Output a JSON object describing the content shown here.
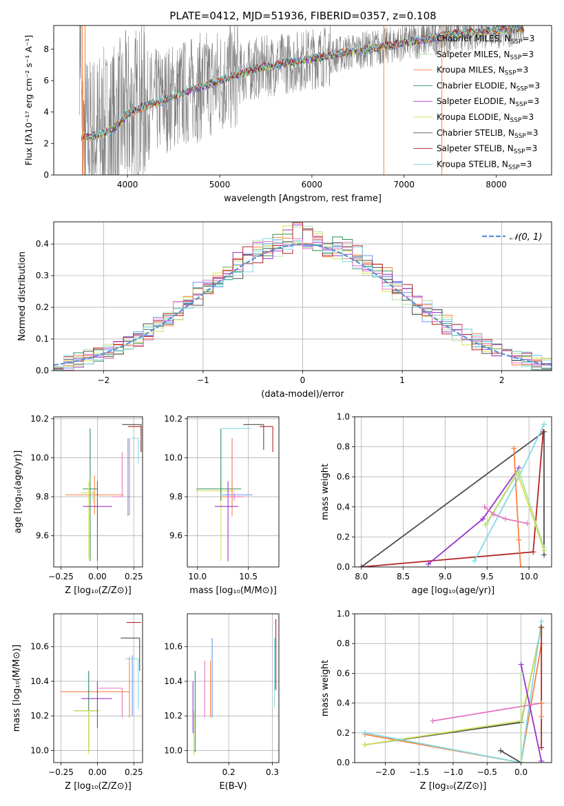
{
  "figure": {
    "title": "PLATE=0412, MJD=51936, FIBERID=0357, z=0.108"
  },
  "colors": {
    "chabrier_miles": "#6495ed",
    "salpeter_miles": "#b0e0a0",
    "kroupa_miles": "#ff7f3f",
    "chabrier_elodie": "#2e8b57",
    "salpeter_elodie": "#9932cc",
    "kroupa_elodie": "#d4e157",
    "chabrier_stelib": "#4d4d4d",
    "salpeter_stelib": "#b22222",
    "kroupa_stelib": "#7fdbe5",
    "pink": "#e377c2",
    "data": "#808080",
    "gaussian": "#5b8fd6"
  },
  "chart_data": [
    {
      "id": "spectrum",
      "type": "line",
      "title": "PLATE=0412, MJD=51936, FIBERID=0357, z=0.108",
      "xlabel": "wavelength [Angstrom, rest frame]",
      "ylabel": "Flux [f_λ 10^-17 erg cm^-2 s^-1 A^-1]",
      "xlim": [
        3200,
        8600
      ],
      "ylim": [
        0,
        9.5
      ],
      "xticks": [
        4000,
        5000,
        6000,
        7000,
        8000
      ],
      "yticks": [
        0,
        2,
        4,
        6,
        8
      ],
      "legend_position": "upper right",
      "legend": [
        "Chabrier MILES, N_SSP=3",
        "Salpeter MILES, N_SSP=3",
        "Kroupa MILES, N_SSP=3",
        "Chabrier ELODIE, N_SSP=3",
        "Salpeter ELODIE, N_SSP=3",
        "Kroupa ELODIE, N_SSP=3",
        "Chabrier STELIB, N_SSP=3",
        "Salpeter STELIB, N_SSP=3",
        "Kroupa STELIB, N_SSP=3"
      ],
      "model_continuum": {
        "x": [
          3500,
          3600,
          3700,
          3800,
          3900,
          4000,
          4200,
          4400,
          4600,
          4800,
          5000,
          5200,
          5400,
          5600,
          5800,
          6000,
          6200,
          6400,
          6600,
          6800,
          7000,
          7200,
          7400,
          7600,
          7800,
          8000,
          8200,
          8300
        ],
        "y": [
          2.5,
          2.4,
          2.6,
          2.8,
          3.2,
          3.9,
          4.4,
          4.8,
          5.2,
          5.6,
          6.0,
          6.4,
          6.8,
          7.0,
          7.2,
          7.4,
          7.6,
          7.8,
          8.0,
          8.2,
          8.4,
          8.6,
          8.8,
          9.0,
          9.1,
          9.2,
          9.3,
          9.3
        ]
      }
    },
    {
      "id": "residuals",
      "type": "histogram",
      "xlabel": "(data-model)/error",
      "ylabel": "Normed distribution",
      "xlim": [
        -2.5,
        2.5
      ],
      "ylim": [
        0,
        0.47
      ],
      "xticks": [
        -2,
        -1,
        0,
        1,
        2
      ],
      "yticks": [
        0.0,
        0.1,
        0.2,
        0.3,
        0.4
      ],
      "grid": true,
      "legend_position": "upper right",
      "legend": [
        "N(0,1)"
      ]
    },
    {
      "id": "age-vs-z",
      "type": "errorbar",
      "xlabel": "Z [log10(Z/Z☉)]",
      "ylabel": "age [log10(age/yr)]",
      "xlim": [
        -0.3,
        0.31
      ],
      "ylim": [
        9.44,
        10.21
      ],
      "xticks": [
        -0.25,
        0.0,
        0.25
      ],
      "yticks": [
        9.6,
        9.8,
        10.0,
        10.2
      ],
      "grid": true,
      "points": [
        {
          "c": "kroupa_miles",
          "x": -0.02,
          "xerr": [
            0.2,
            0.2
          ],
          "y": 9.81,
          "yerr": [
            0.1,
            0.1
          ]
        },
        {
          "c": "chabrier_elodie",
          "x": -0.05,
          "xerr": [
            0.05,
            0.05
          ],
          "y": 9.84,
          "yerr": [
            0.37,
            0.31
          ]
        },
        {
          "c": "kroupa_elodie",
          "x": -0.06,
          "xerr": [
            0.05,
            0.05
          ],
          "y": 9.82,
          "yerr": [
            0.34,
            0.06
          ]
        },
        {
          "c": "salpeter_elodie",
          "x": 0.0,
          "xerr": [
            0.1,
            0.1
          ],
          "y": 9.75,
          "yerr": [
            0.28,
            0.13
          ]
        },
        {
          "c": "salpeter_miles",
          "x": -0.03,
          "xerr": [
            0.02,
            0.04
          ],
          "y": 9.8,
          "yerr": [
            0.03,
            0.03
          ]
        },
        {
          "c": "pink",
          "x": 0.17,
          "xerr": [
            0.07,
            0.01
          ],
          "y": 9.8,
          "yerr": [
            0.0,
            0.23
          ]
        },
        {
          "c": "chabrier_miles",
          "x": 0.21,
          "xerr": [
            0.0,
            0.01
          ],
          "y": 9.8,
          "yerr": [
            0.1,
            0.3
          ]
        },
        {
          "c": "kroupa_miles",
          "x": 0.22,
          "xerr": [
            0.01,
            0.0
          ],
          "y": 9.71,
          "yerr": [
            0.0,
            0.39
          ]
        },
        {
          "c": "chabrier_stelib",
          "x": 0.3,
          "xerr": [
            0.13,
            0.0
          ],
          "y": 10.17,
          "yerr": [
            0.14,
            0.0
          ]
        },
        {
          "c": "salpeter_stelib",
          "x": 0.3,
          "xerr": [
            0.09,
            0.0
          ],
          "y": 10.16,
          "yerr": [
            0.13,
            0.0
          ]
        },
        {
          "c": "kroupa_stelib",
          "x": 0.28,
          "xerr": [
            0.05,
            0.0
          ],
          "y": 10.1,
          "yerr": [
            0.13,
            0.0
          ]
        }
      ]
    },
    {
      "id": "age-vs-mass",
      "type": "errorbar",
      "xlabel": "mass [log10(M/M☉)]",
      "ylabel": "",
      "xlim": [
        9.9,
        10.8
      ],
      "ylim": [
        9.44,
        10.21
      ],
      "xticks": [
        10.0,
        10.5
      ],
      "yticks": [
        9.6,
        9.8,
        10.0,
        10.2
      ],
      "grid": true,
      "points": [
        {
          "c": "kroupa_elodie",
          "x": 10.23,
          "xerr": [
            0.25,
            0.14
          ],
          "y": 9.83,
          "yerr": [
            0.36,
            0.05
          ]
        },
        {
          "c": "chabrier_elodie",
          "x": 10.23,
          "xerr": [
            0.24,
            0.2
          ],
          "y": 9.84,
          "yerr": [
            0.06,
            0.31
          ]
        },
        {
          "c": "chabrier_miles",
          "x": 10.34,
          "xerr": [
            0.1,
            0.2
          ],
          "y": 9.81,
          "yerr": [
            0.05,
            0.29
          ]
        },
        {
          "c": "kroupa_miles",
          "x": 10.34,
          "xerr": [
            0.1,
            0.1
          ],
          "y": 9.8,
          "yerr": [
            0.1,
            0.3
          ]
        },
        {
          "c": "salpeter_elodie",
          "x": 10.3,
          "xerr": [
            0.13,
            0.1
          ],
          "y": 9.75,
          "yerr": [
            0.28,
            0.13
          ]
        },
        {
          "c": "pink",
          "x": 10.36,
          "xerr": [
            0.06,
            0.1
          ],
          "y": 9.8,
          "yerr": [
            0.02,
            0.02
          ]
        },
        {
          "c": "kroupa_stelib",
          "x": 10.53,
          "xerr": [
            0.29,
            0.0
          ],
          "y": 10.15,
          "yerr": [
            0.0,
            0.0
          ]
        },
        {
          "c": "chabrier_stelib",
          "x": 10.65,
          "xerr": [
            0.2,
            0.0
          ],
          "y": 10.17,
          "yerr": [
            0.13,
            0.0
          ]
        },
        {
          "c": "salpeter_stelib",
          "x": 10.74,
          "xerr": [
            0.13,
            0.0
          ],
          "y": 10.16,
          "yerr": [
            0.13,
            0.0
          ]
        }
      ]
    },
    {
      "id": "weight-vs-age",
      "type": "line",
      "xlabel": "age [log10(age/yr)]",
      "ylabel": "mass weight",
      "xlim": [
        7.92,
        10.27
      ],
      "ylim": [
        0,
        1
      ],
      "xticks": [
        8.0,
        8.5,
        9.0,
        9.5,
        10.0
      ],
      "yticks": [
        0.0,
        0.2,
        0.4,
        0.6,
        0.8,
        1.0
      ],
      "grid": true,
      "series": [
        {
          "c": "chabrier_stelib",
          "x": [
            8.0,
            10.18,
            10.18
          ],
          "y": [
            0.0,
            0.9,
            0.08
          ]
        },
        {
          "c": "salpeter_stelib",
          "x": [
            8.0,
            10.05,
            10.17
          ],
          "y": [
            0.0,
            0.1,
            0.9
          ]
        },
        {
          "c": "salpeter_elodie",
          "x": [
            8.8,
            9.45,
            9.88
          ],
          "y": [
            0.02,
            0.32,
            0.66
          ]
        },
        {
          "c": "kroupa_stelib",
          "x": [
            9.35,
            9.88,
            10.18
          ],
          "y": [
            0.04,
            0.6,
            0.95
          ]
        },
        {
          "c": "kroupa_miles",
          "x": [
            9.82,
            9.88,
            9.9
          ],
          "y": [
            0.79,
            0.18,
            0.0
          ]
        },
        {
          "c": "kroupa_elodie",
          "x": [
            9.48,
            9.86,
            10.18
          ],
          "y": [
            0.28,
            0.63,
            0.11
          ]
        },
        {
          "c": "salpeter_miles",
          "x": [
            9.5,
            9.88,
            10.18
          ],
          "y": [
            0.29,
            0.64,
            0.13
          ]
        },
        {
          "c": "pink",
          "x": [
            9.47,
            9.58,
            9.72,
            9.98
          ],
          "y": [
            0.4,
            0.35,
            0.32,
            0.29
          ]
        }
      ]
    },
    {
      "id": "mass-vs-z",
      "type": "errorbar",
      "xlabel": "Z [log10(Z/Z☉)]",
      "ylabel": "mass [log10(M/M☉)]",
      "xlim": [
        -0.3,
        0.31
      ],
      "ylim": [
        9.93,
        10.79
      ],
      "xticks": [
        -0.25,
        0.0,
        0.25
      ],
      "yticks": [
        10.0,
        10.2,
        10.4,
        10.6
      ],
      "grid": true,
      "points": [
        {
          "c": "kroupa_miles",
          "x": -0.02,
          "xerr": [
            0.23,
            0.24
          ],
          "y": 10.34,
          "yerr": [
            0.0,
            0.0
          ]
        },
        {
          "c": "chabrier_elodie",
          "x": -0.06,
          "xerr": [
            0.1,
            0.06
          ],
          "y": 10.23,
          "yerr": [
            0.24,
            0.23
          ]
        },
        {
          "c": "kroupa_elodie",
          "x": -0.06,
          "xerr": [
            0.1,
            0.08
          ],
          "y": 10.23,
          "yerr": [
            0.25,
            0.0
          ]
        },
        {
          "c": "salpeter_elodie",
          "x": 0.0,
          "xerr": [
            0.11,
            0.1
          ],
          "y": 10.3,
          "yerr": [
            0.17,
            0.1
          ]
        },
        {
          "c": "pink",
          "x": 0.17,
          "xerr": [
            0.17,
            0.0
          ],
          "y": 10.36,
          "yerr": [
            0.17,
            0.0
          ]
        },
        {
          "c": "kroupa_miles",
          "x": 0.22,
          "xerr": [
            0.0,
            0.0
          ],
          "y": 10.34,
          "yerr": [
            0.15,
            0.2
          ]
        },
        {
          "c": "chabrier_miles",
          "x": 0.24,
          "xerr": [
            0.0,
            0.0
          ],
          "y": 10.34,
          "yerr": [
            0.14,
            0.21
          ]
        },
        {
          "c": "kroupa_stelib",
          "x": 0.28,
          "xerr": [
            0.09,
            0.0
          ],
          "y": 10.53,
          "yerr": [
            0.29,
            0.0
          ]
        },
        {
          "c": "chabrier_stelib",
          "x": 0.29,
          "xerr": [
            0.13,
            0.0
          ],
          "y": 10.65,
          "yerr": [
            0.19,
            0.0
          ]
        },
        {
          "c": "salpeter_stelib",
          "x": 0.3,
          "xerr": [
            0.1,
            0.0
          ],
          "y": 10.74,
          "yerr": [
            0.0,
            0.0
          ]
        }
      ]
    },
    {
      "id": "mass-vs-ebv",
      "type": "errorbar",
      "xlabel": "E(B-V)",
      "ylabel": "",
      "xlim": [
        0.105,
        0.315
      ],
      "ylim": [
        9.93,
        10.79
      ],
      "xticks": [
        0.2,
        0.3
      ],
      "yticks": [
        10.0,
        10.2,
        10.4,
        10.6
      ],
      "grid": true,
      "points": [
        {
          "c": "salpeter_elodie",
          "x": 0.118,
          "y": 10.3,
          "yerr": [
            0.2,
            0.1
          ]
        },
        {
          "c": "kroupa_elodie",
          "x": 0.12,
          "y": 10.23,
          "yerr": [
            0.26,
            0.0
          ]
        },
        {
          "c": "chabrier_elodie",
          "x": 0.123,
          "y": 10.23,
          "yerr": [
            0.24,
            0.23
          ]
        },
        {
          "c": "pink",
          "x": 0.145,
          "y": 10.36,
          "yerr": [
            0.17,
            0.16
          ]
        },
        {
          "c": "kroupa_miles",
          "x": 0.158,
          "y": 10.34,
          "yerr": [
            0.15,
            0.18
          ]
        },
        {
          "c": "chabrier_miles",
          "x": 0.162,
          "y": 10.44,
          "yerr": [
            0.25,
            0.21
          ]
        },
        {
          "c": "chabrier_stelib",
          "x": 0.305,
          "y": 10.5,
          "yerr": [
            0.15,
            0.15
          ]
        },
        {
          "c": "kroupa_stelib",
          "x": 0.305,
          "y": 10.45,
          "yerr": [
            0.2,
            0.2
          ]
        },
        {
          "c": "salpeter_stelib",
          "x": 0.308,
          "y": 10.5,
          "yerr": [
            0.15,
            0.26
          ]
        }
      ]
    },
    {
      "id": "weight-vs-z",
      "type": "line",
      "xlabel": "Z [log10(Z/Z☉)]",
      "ylabel": "mass weight",
      "xlim": [
        -2.45,
        0.45
      ],
      "ylim": [
        0,
        1
      ],
      "xticks": [
        -2.0,
        -1.5,
        -1.0,
        -0.5,
        0.0
      ],
      "yticks": [
        0.0,
        0.2,
        0.4,
        0.6,
        0.8,
        1.0
      ],
      "grid": true,
      "series": [
        {
          "c": "kroupa_miles",
          "x": [
            -2.3,
            0.0,
            0.3
          ],
          "y": [
            0.19,
            0.0,
            0.8
          ]
        },
        {
          "c": "chabrier_stelib",
          "x": [
            -2.3,
            0.0,
            0.3
          ],
          "y": [
            0.12,
            0.27,
            0.91
          ]
        },
        {
          "c": "kroupa_elodie",
          "x": [
            -2.3,
            0.0,
            0.3
          ],
          "y": [
            0.12,
            0.28,
            0.9
          ]
        },
        {
          "c": "kroupa_stelib",
          "x": [
            -2.3,
            0.0,
            0.3
          ],
          "y": [
            0.2,
            0.0,
            0.95
          ]
        },
        {
          "c": "salpeter_elodie",
          "x": [
            0.0,
            0.3
          ],
          "y": [
            0.66,
            0.01
          ]
        },
        {
          "c": "pink",
          "x": [
            -1.3,
            0.3
          ],
          "y": [
            0.28,
            0.4
          ]
        },
        {
          "c": "chabrier_stelib",
          "x": [
            -0.3,
            0.0
          ],
          "y": [
            0.08,
            0.0
          ]
        },
        {
          "c": "salpeter_stelib",
          "x": [
            0.3,
            0.3
          ],
          "y": [
            0.1,
            0.91
          ]
        },
        {
          "c": "kroupa_miles",
          "x": [
            0.3,
            0.3
          ],
          "y": [
            0.31,
            0.4
          ]
        },
        {
          "c": "salpeter_miles",
          "x": [
            0.0,
            0.0
          ],
          "y": [
            0.0,
            0.6
          ]
        }
      ]
    }
  ]
}
